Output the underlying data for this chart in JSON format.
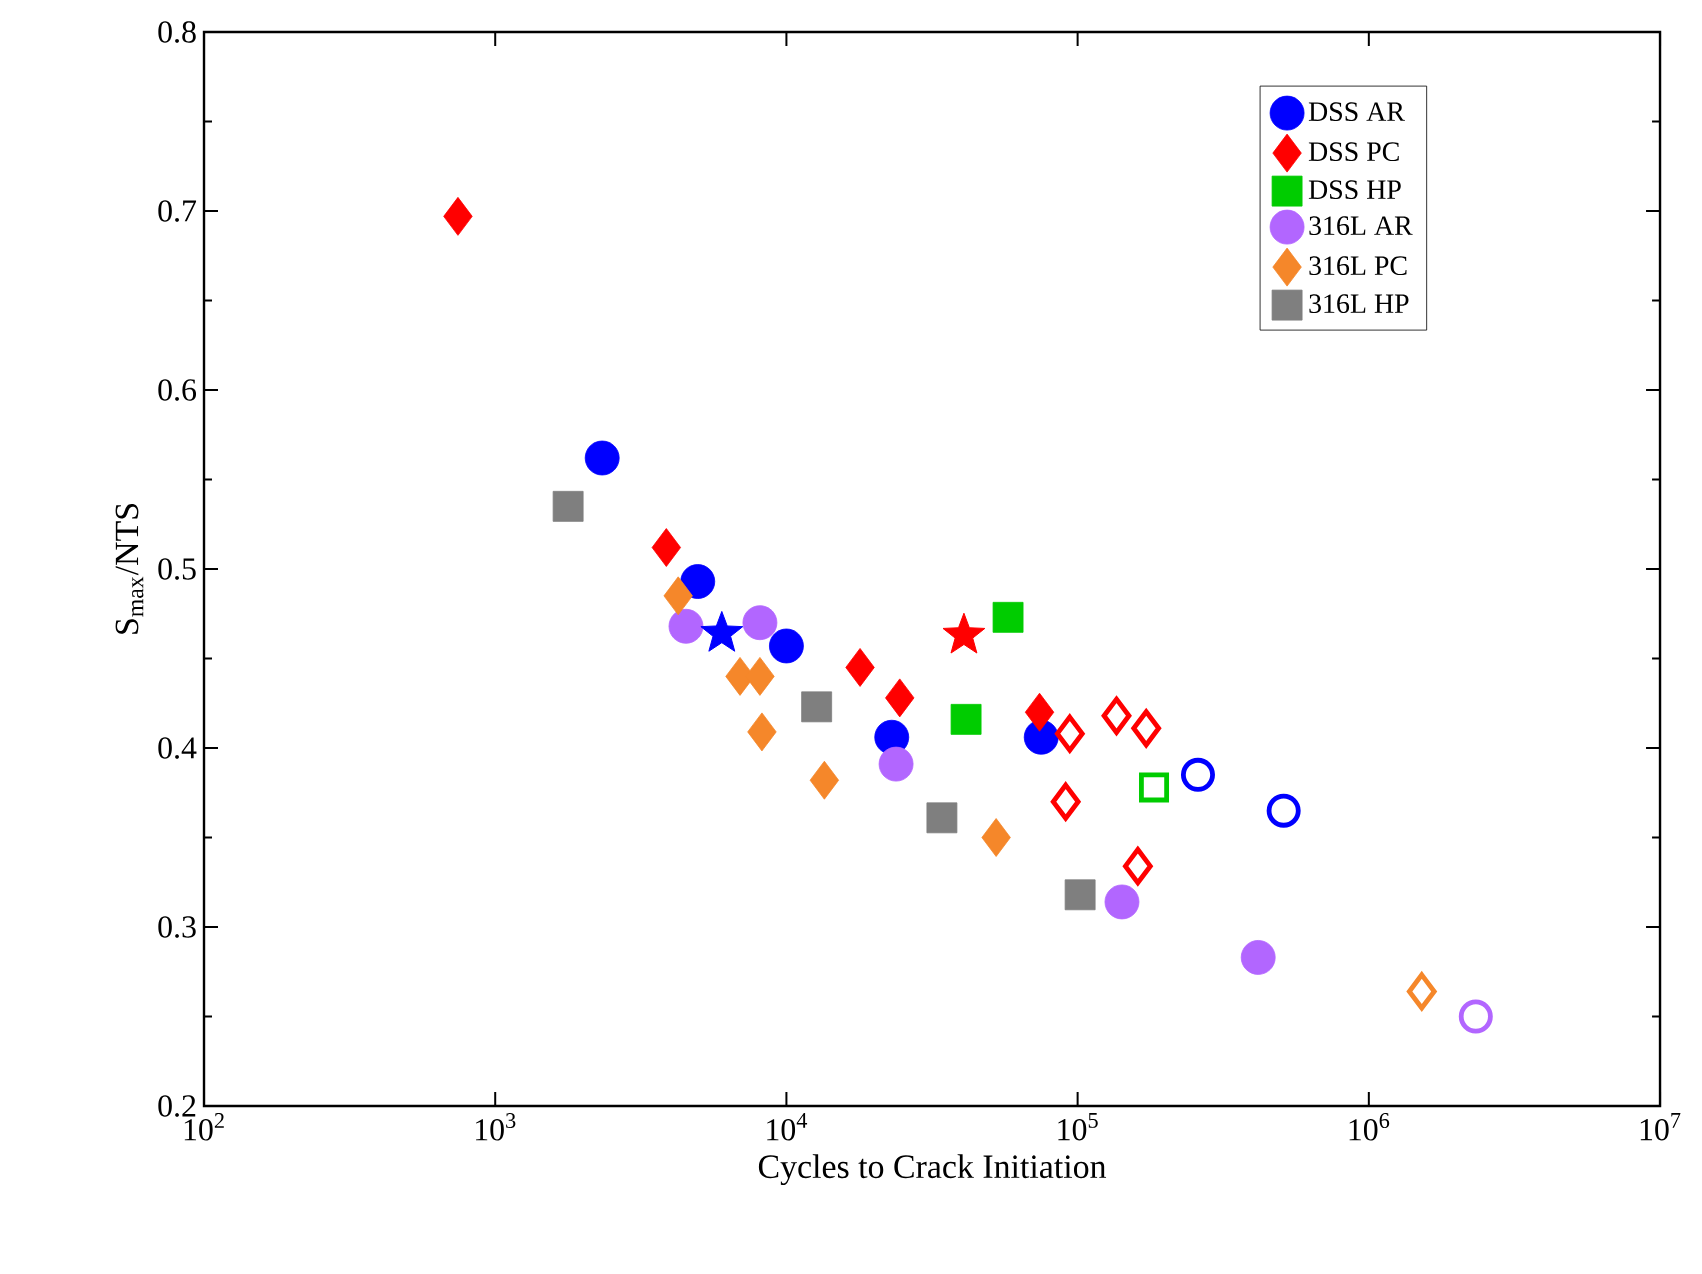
{
  "chart_data": {
    "type": "scatter",
    "xlabel": "Cycles to Crack Initiation",
    "ylabel": "S$_{max}$/NTS",
    "log": "x",
    "xlim": [
      100,
      10000000
    ],
    "ylim": [
      0.2,
      0.8
    ],
    "xticks": [
      {
        "value": 100,
        "label": "10$^{2}$"
      },
      {
        "value": 1000,
        "label": "10$^{3}$"
      },
      {
        "value": 10000,
        "label": "10$^{4}$"
      },
      {
        "value": 100000,
        "label": "10$^{5}$"
      },
      {
        "value": 1000000,
        "label": "10$^{6}$"
      },
      {
        "value": 10000000,
        "label": "10$^{7}$"
      }
    ],
    "yticks": [
      0.2,
      0.3,
      0.4,
      0.5,
      0.6,
      0.7,
      0.8
    ],
    "legend": "top right",
    "series": [
      {
        "name": "DSS AR",
        "color": "#0000ff",
        "marker": "circle",
        "x": [
          2330,
          4960,
          10000,
          23000,
          75000
        ],
        "values": [
          0.562,
          0.493,
          0.457,
          0.406,
          0.406
        ]
      },
      {
        "name": "DSS PC",
        "color": "#ff0000",
        "marker": "diamond",
        "x": [
          745,
          3870,
          17900,
          24500,
          74000
        ],
        "values": [
          0.697,
          0.512,
          0.445,
          0.428,
          0.42
        ]
      },
      {
        "name": "DSS HP",
        "color": "#00cc00",
        "marker": "square",
        "x": [
          57700,
          41400
        ],
        "values": [
          0.473,
          0.416
        ]
      },
      {
        "name": "316L AR",
        "color": "#b266ff",
        "marker": "circle",
        "x": [
          4520,
          8110,
          23800,
          142000,
          417000
        ],
        "values": [
          0.468,
          0.47,
          0.391,
          0.314,
          0.283
        ]
      },
      {
        "name": "316L PC",
        "color": "#f5872a",
        "marker": "diamond",
        "x": [
          4250,
          6930,
          8110,
          8240,
          13500,
          52500
        ],
        "values": [
          0.485,
          0.44,
          0.44,
          0.409,
          0.382,
          0.35
        ]
      },
      {
        "name": "316L HP",
        "color": "#7f7f7f",
        "marker": "square",
        "x": [
          1780,
          12700,
          34200,
          102000
        ],
        "values": [
          0.535,
          0.423,
          0.361,
          0.318
        ]
      },
      {
        "color": "#0000ff",
        "marker": "circle",
        "x": [
          259000,
          510000
        ],
        "values": [
          0.385,
          0.365
        ]
      },
      {
        "color": "#ff0000",
        "marker": "diamond",
        "x": [
          94000,
          136000,
          172000,
          91000,
          161000
        ],
        "values": [
          0.408,
          0.418,
          0.411,
          0.37,
          0.334
        ]
      },
      {
        "color": "#00cc00",
        "marker": "square",
        "x": [
          183000
        ],
        "values": [
          0.378
        ]
      },
      {
        "color": "#b266ff",
        "marker": "circle",
        "x": [
          2330000
        ],
        "values": [
          0.25
        ]
      },
      {
        "color": "#f5872a",
        "marker": "diamond",
        "x": [
          1520000
        ],
        "values": [
          0.264
        ]
      },
      {
        "color": "#0000ff",
        "marker": "star",
        "x": [
          6000
        ],
        "values": [
          0.464
        ]
      },
      {
        "color": "#ff0000",
        "marker": "star",
        "x": [
          40700
        ],
        "values": [
          0.463
        ]
      }
    ]
  }
}
